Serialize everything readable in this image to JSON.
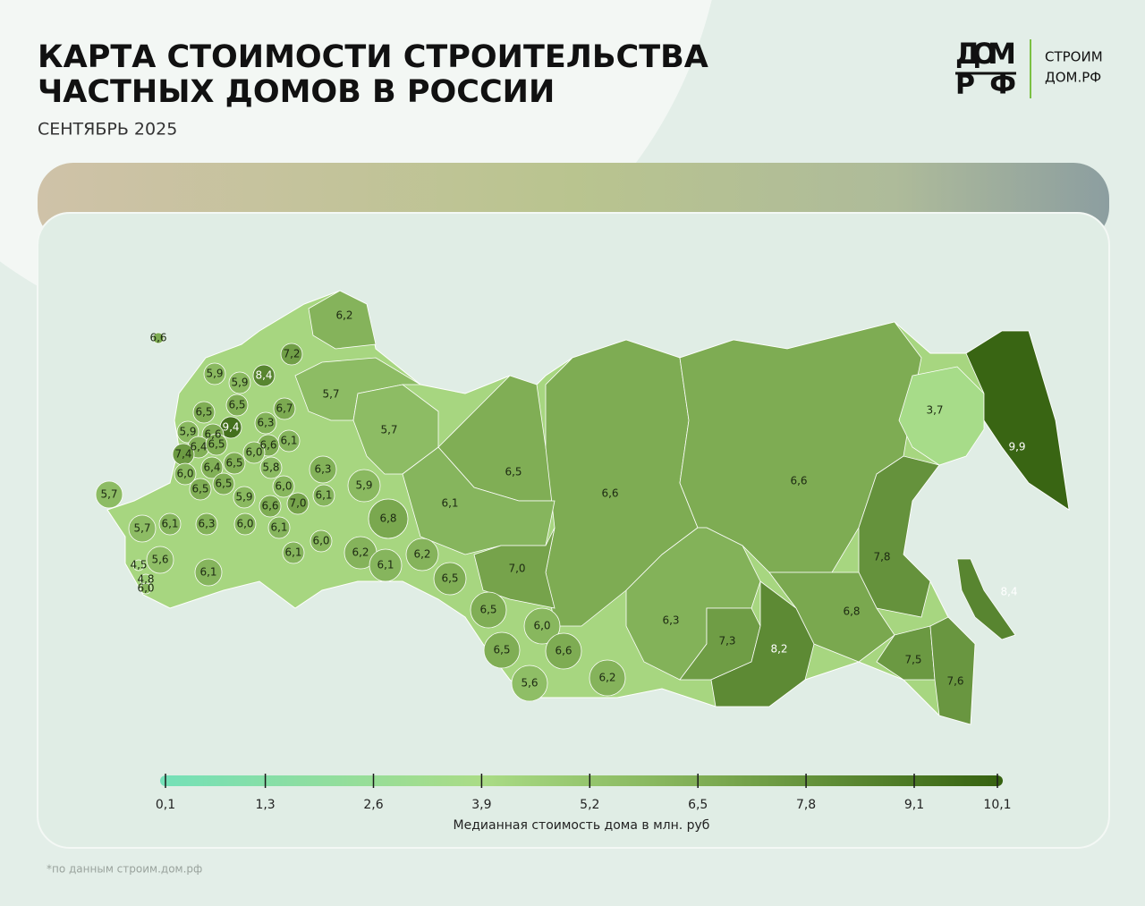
{
  "header": {
    "title_line1": "КАРТА СТОИМОСТИ СТРОИТЕЛЬСТВА",
    "title_line2": "ЧАСТНЫХ ДОМОВ В РОССИИ",
    "subtitle": "СЕНТЯБРЬ 2025"
  },
  "logo": {
    "mark_top": "ДОМ",
    "mark_bottom": "РФ",
    "text_line1": "СТРОИМ",
    "text_line2": "ДОМ.РФ"
  },
  "chart_data": {
    "type": "choropleth",
    "values": [
      6.2,
      7.2,
      8.4,
      5.9,
      5.9,
      5.7,
      6.7,
      6.5,
      6.5,
      6.3,
      9.4,
      5.9,
      6.6,
      6.4,
      6.5,
      6.1,
      6.6,
      6.0,
      7.4,
      6.0,
      6.4,
      6.5,
      5.8,
      6.3,
      5.7,
      6.5,
      6.6,
      6.6,
      3.7,
      9.9,
      5.9,
      6.5,
      6.5,
      6.0,
      6.1,
      6.1,
      6.6,
      7.0,
      5.9,
      6.1,
      6.3,
      6.0,
      6.1,
      6.8,
      5.7,
      5.7,
      5.6,
      6.1,
      6.1,
      6.0,
      6.2,
      6.1,
      6.2,
      6.5,
      7.0,
      6.5,
      6.0,
      6.5,
      6.6,
      5.6,
      6.2,
      6.3,
      7.3,
      8.2,
      7.8,
      6.8,
      8.4,
      7.5,
      7.6,
      4.5,
      4.8,
      6.0,
      6.6
    ],
    "value_labels": [
      "6,2",
      "7,2",
      "8,4",
      "5,9",
      "5,9",
      "5,7",
      "6,7",
      "6,5",
      "6,5",
      "6,3",
      "9,4",
      "5,9",
      "6,6",
      "6,4",
      "6,5",
      "6,1",
      "6,6",
      "6,0",
      "7,4",
      "6,0",
      "6,4",
      "6,5",
      "5,8",
      "6,3",
      "5,7",
      "6,5",
      "6,6",
      "6,6",
      "3,7",
      "9,9",
      "5,9",
      "6,5",
      "6,5",
      "6,0",
      "6,1",
      "6,1",
      "6,6",
      "7,0",
      "5,9",
      "6,1",
      "6,3",
      "6,0",
      "6,1",
      "6,8",
      "5,7",
      "5,7",
      "5,6",
      "6,1",
      "6,1",
      "6,0",
      "6,2",
      "6,1",
      "6,2",
      "6,5",
      "7,0",
      "6,5",
      "6,0",
      "6,5",
      "6,6",
      "5,6",
      "6,2",
      "6,3",
      "7,3",
      "8,2",
      "7,8",
      "6,8",
      "8,4",
      "7,5",
      "7,6",
      "4,5",
      "4,8",
      "6,0",
      "6,6"
    ],
    "colorbar": {
      "lim": [
        0.1,
        10.1
      ],
      "ticks": [
        {
          "value": 0.1,
          "label": "0,1"
        },
        {
          "value": 1.3,
          "label": "1,3"
        },
        {
          "value": 2.6,
          "label": "2,6"
        },
        {
          "value": 3.9,
          "label": "3,9"
        },
        {
          "value": 5.2,
          "label": "5,2"
        },
        {
          "value": 6.5,
          "label": "6,5"
        },
        {
          "value": 7.8,
          "label": "7,8"
        },
        {
          "value": 9.1,
          "label": "9,1"
        },
        {
          "value": 10.1,
          "label": "10,1"
        }
      ],
      "label": "Медианная стоимость дома в млн. руб"
    }
  },
  "footnote": "*по данным строим.дом.рф"
}
